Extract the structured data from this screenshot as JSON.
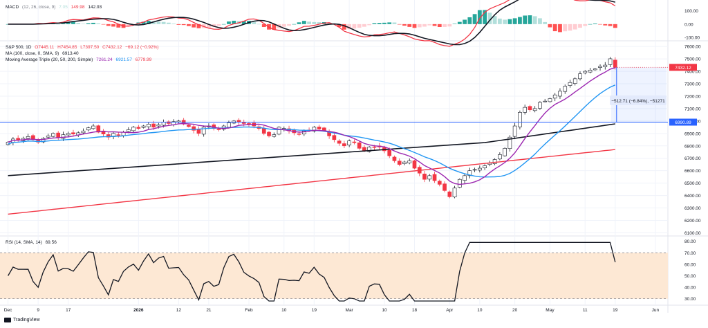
{
  "macd": {
    "label": "MACD",
    "params": "(12, 26, close, 9)",
    "hist_val": "7.05",
    "macd_val": "149.98",
    "signal_val": "142.93",
    "ticks": [
      "100.00",
      "0.00",
      "-100.00"
    ],
    "tick_values": [
      100,
      0,
      -100
    ],
    "range": [
      -120,
      160
    ]
  },
  "price": {
    "symbol": "S&P 500, 1D",
    "o": "O7445.11",
    "h": "H7454.85",
    "l": "L7397.50",
    "c": "C7432.12",
    "chg": "−69.12 (−0.92%)",
    "ma_label": "MA (100, close, 0, SMA, 9)",
    "ma_val": "6913.40",
    "triple_label": "Moving Average Triple (20, 50, 200, Simple)",
    "triple_20": "7261.24",
    "triple_50": "6921.57",
    "triple_200": "6779.99",
    "last_price_label": "7432.12",
    "hline_label": "6990.89",
    "hline_value": 6990.89,
    "measure_label": "−512.71 (−6.84%), −51271",
    "ticks": [
      "7600.00",
      "7500.00",
      "7400.00",
      "7300.00",
      "7200.00",
      "7100.00",
      "7000.00",
      "6900.00",
      "6800.00",
      "6700.00",
      "6600.00",
      "6500.00",
      "6400.00",
      "6300.00",
      "6200.00",
      "6100.00"
    ],
    "tick_values": [
      7600,
      7500,
      7400,
      7300,
      7200,
      7100,
      7000,
      6900,
      6800,
      6700,
      6600,
      6500,
      6400,
      6300,
      6200,
      6100
    ],
    "range": [
      6080,
      7640
    ]
  },
  "rsi": {
    "label": "RSI (14, SMA, 14)",
    "value": "69.56",
    "ticks": [
      "80.00",
      "70.00",
      "60.00",
      "50.00",
      "40.00",
      "30.00"
    ],
    "tick_values": [
      80,
      70,
      60,
      50,
      40,
      30
    ],
    "range": [
      25,
      84
    ],
    "band": [
      30,
      70
    ]
  },
  "xaxis": {
    "labels": [
      "Dec",
      "9",
      "17",
      "2026",
      "12",
      "21",
      "Feb",
      "10",
      "19",
      "Mar",
      "10",
      "18",
      "Apr",
      "10",
      "20",
      "May",
      "11",
      "19",
      "Jun"
    ],
    "label_idx": [
      0,
      6,
      12,
      26,
      34,
      40,
      48,
      55,
      61,
      68,
      75,
      81,
      88,
      94,
      101,
      108,
      115,
      121,
      129
    ]
  },
  "brand": "TradingView",
  "colors": {
    "up": "#089981",
    "down": "#f23645",
    "ma100": "#131722",
    "ma20": "#9c27b0",
    "ma50": "#2196f3",
    "ma200": "#f23645",
    "hline": "#2962ff",
    "rsi_band": "#fde8d4"
  },
  "chart_data": {
    "type": "candlestick",
    "title": "S&P 500, 1D",
    "series_close": [
      6830,
      6855,
      6850,
      6860,
      6875,
      6850,
      6830,
      6860,
      6880,
      6900,
      6870,
      6890,
      6900,
      6895,
      6905,
      6920,
      6945,
      6960,
      6910,
      6895,
      6870,
      6900,
      6885,
      6910,
      6930,
      6950,
      6940,
      6960,
      6975,
      6950,
      6970,
      6990,
      6980,
      6995,
      7000,
      6975,
      6955,
      6925,
      6900,
      6950,
      6960,
      6940,
      6930,
      6960,
      6985,
      7000,
      6995,
      6980,
      6975,
      6960,
      6940,
      6900,
      6880,
      6890,
      6950,
      6940,
      6920,
      6905,
      6895,
      6920,
      6925,
      6950,
      6935,
      6920,
      6880,
      6850,
      6820,
      6800,
      6840,
      6825,
      6780,
      6760,
      6790,
      6790,
      6790,
      6760,
      6720,
      6680,
      6650,
      6670,
      6680,
      6620,
      6580,
      6530,
      6560,
      6520,
      6490,
      6440,
      6390,
      6460,
      6530,
      6560,
      6600,
      6610,
      6620,
      6640,
      6660,
      6690,
      6730,
      6780,
      6870,
      6960,
      7070,
      7110,
      7090,
      7100,
      7150,
      7160,
      7180,
      7210,
      7240,
      7280,
      7310,
      7340,
      7380,
      7400,
      7410,
      7420,
      7440,
      7450,
      7501,
      7432
    ],
    "ylim": [
      6080,
      7640
    ]
  }
}
